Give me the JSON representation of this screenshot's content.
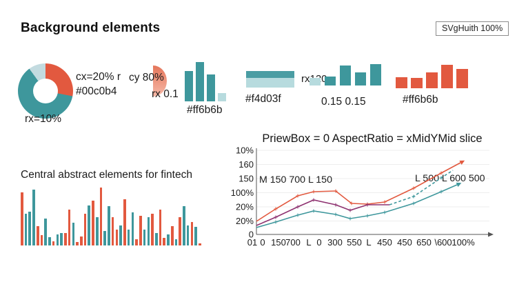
{
  "header": {
    "title": "Background elements",
    "badge": "SVgHuith 100%"
  },
  "palette": {
    "coral": "#e2593f",
    "teal": "#3e979c",
    "dark_teal": "#4a9da3",
    "light_teal": "#b7dbde",
    "light_blue": "#c3dbe0",
    "purple": "#8e3270",
    "grid": "#ededed",
    "axis": "#555555",
    "text": "#1b1b1b"
  },
  "labels": {
    "cx_line1": "cx=20% r",
    "cx_line2": "#00c0b4",
    "cy": "cy 80%",
    "rx01": "rx 0.1",
    "rx120": "rx120"
  },
  "chart_data": [
    {
      "id": "donut",
      "type": "pie",
      "label": "rx=10%",
      "slices": [
        {
          "name": "coral",
          "pct": 28
        },
        {
          "name": "teal",
          "pct": 62
        },
        {
          "name": "light_blue",
          "pct": 10
        }
      ]
    },
    {
      "id": "mini-teal-bars",
      "type": "bar",
      "label": "#ff6b6b",
      "values": [
        44,
        57,
        39,
        12
      ],
      "colors": [
        "teal",
        "teal",
        "teal",
        "light_teal"
      ]
    },
    {
      "id": "hbar",
      "type": "bar",
      "orientation": "horizontal",
      "label": "#f4d03f",
      "values": [
        10,
        14
      ],
      "colors": [
        "dark_teal",
        "light_teal"
      ]
    },
    {
      "id": "teal-bars",
      "type": "bar",
      "label": "0.15 0.15",
      "values": [
        11,
        13,
        29,
        19,
        31
      ],
      "colors": [
        "light_teal",
        "teal",
        "teal",
        "teal",
        "teal"
      ]
    },
    {
      "id": "coral-bars",
      "type": "bar",
      "label": "#ff6b6b",
      "values": [
        16,
        15,
        23,
        34,
        28
      ],
      "colors": [
        "coral",
        "coral",
        "coral",
        "coral",
        "coral"
      ]
    },
    {
      "id": "line-chart",
      "type": "line",
      "title": "PriewBox = 0 AspectRatio = xMidYMid slice",
      "grid": true,
      "legend": "none",
      "y_ticks": [
        "10%",
        "160",
        "150",
        "100%",
        "20%",
        "20%",
        "0"
      ],
      "y_tick_y": [
        6,
        26.5,
        47,
        67.5,
        88,
        108.5,
        128
      ],
      "x_ticks": [
        "01",
        "0",
        "150",
        "700",
        "L",
        "0",
        "300",
        "550",
        "L",
        "450",
        "450",
        "650",
        "\\600",
        "100%"
      ],
      "x_tick_x": [
        36,
        51,
        74,
        95,
        118,
        133,
        156,
        184,
        205,
        228,
        257,
        285,
        313,
        342
      ],
      "annotations": [
        {
          "text": "M 150 700 L 150",
          "x": 46,
          "y": 53
        },
        {
          "text": "L 500 L 600 500",
          "x": 272,
          "y": 51
        }
      ],
      "series": [
        {
          "name": "coral",
          "style": "solid",
          "arrow": true,
          "points": [
            [
              42,
              109
            ],
            [
              70,
              91
            ],
            [
              102,
              72
            ],
            [
              125,
              66
            ],
            [
              157,
              65
            ],
            [
              180,
              83
            ],
            [
              203,
              84
            ],
            [
              228,
              81
            ],
            [
              270,
              61
            ],
            [
              310,
              39
            ],
            [
              338,
              24
            ]
          ]
        },
        {
          "name": "purple",
          "style": "solid",
          "arrow": false,
          "points": [
            [
              42,
              115
            ],
            [
              70,
              103
            ],
            [
              102,
              88
            ],
            [
              125,
              78
            ],
            [
              157,
              85
            ],
            [
              178,
              93
            ],
            [
              203,
              85
            ],
            [
              235,
              85
            ]
          ]
        },
        {
          "name": "teal",
          "style": "solid",
          "arrow": true,
          "points": [
            [
              42,
              118
            ],
            [
              70,
              110
            ],
            [
              102,
              100
            ],
            [
              125,
              94
            ],
            [
              157,
              99
            ],
            [
              178,
              105
            ],
            [
              203,
              101
            ],
            [
              228,
              96
            ],
            [
              270,
              83
            ],
            [
              310,
              66
            ],
            [
              333,
              56
            ]
          ]
        },
        {
          "name": "teal",
          "style": "dashed",
          "arrow": false,
          "points": [
            [
              235,
              85
            ],
            [
              270,
              73
            ],
            [
              310,
              46
            ],
            [
              327,
              35
            ]
          ]
        }
      ]
    },
    {
      "id": "dense-bars",
      "type": "bar",
      "title": "Central abstract elements for fintech",
      "bars": [
        [
          "c",
          90
        ],
        [
          "t",
          54
        ],
        [
          "t",
          57
        ],
        [
          "t",
          94
        ],
        [
          "c",
          33
        ],
        [
          "c",
          18
        ],
        [
          "t",
          45
        ],
        [
          "t",
          14
        ],
        [
          "c",
          7
        ],
        [
          "t",
          19
        ],
        [
          "t",
          21
        ],
        [
          "c",
          21
        ],
        [
          "c",
          60
        ],
        [
          "t",
          38
        ],
        [
          "c",
          6
        ],
        [
          "c",
          15
        ],
        [
          "c",
          53
        ],
        [
          "t",
          68
        ],
        [
          "c",
          76
        ],
        [
          "t",
          48
        ],
        [
          "c",
          98
        ],
        [
          "t",
          24
        ],
        [
          "t",
          66
        ],
        [
          "c",
          48
        ],
        [
          "c",
          27
        ],
        [
          "t",
          34
        ],
        [
          "c",
          78
        ],
        [
          "t",
          27
        ],
        [
          "t",
          56
        ],
        [
          "c",
          11
        ],
        [
          "c",
          50
        ],
        [
          "t",
          27
        ],
        [
          "t",
          48
        ],
        [
          "c",
          53
        ],
        [
          "t",
          21
        ],
        [
          "c",
          60
        ],
        [
          "c",
          13
        ],
        [
          "t",
          19
        ],
        [
          "c",
          33
        ],
        [
          "t",
          10
        ],
        [
          "c",
          48
        ],
        [
          "t",
          66
        ],
        [
          "t",
          34
        ],
        [
          "c",
          40
        ],
        [
          "t",
          31
        ],
        [
          "c",
          4
        ]
      ]
    }
  ]
}
